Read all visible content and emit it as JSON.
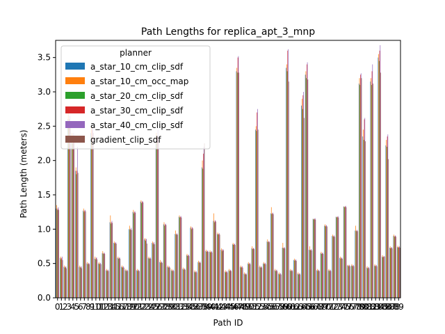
{
  "chart_data": {
    "type": "bar",
    "title": "Path Lengths for replica_apt_3_mnp",
    "xlabel": "Path ID",
    "ylabel": "Path Length (meters)",
    "ylim": [
      0,
      3.75
    ],
    "yticks": [
      "0.0",
      "0.5",
      "1.0",
      "1.5",
      "2.0",
      "2.5",
      "3.0",
      "3.5"
    ],
    "legend_title": "planner",
    "legend_position": "upper-left",
    "grid": false,
    "categories": [
      "0",
      "1",
      "2",
      "3",
      "4",
      "5",
      "6",
      "7",
      "8",
      "9",
      "10",
      "11",
      "12",
      "13",
      "14",
      "15",
      "16",
      "17",
      "18",
      "19",
      "20",
      "21",
      "22",
      "23",
      "24",
      "25",
      "26",
      "27",
      "28",
      "29",
      "30",
      "31",
      "32",
      "33",
      "34",
      "35",
      "36",
      "37",
      "38",
      "39",
      "40",
      "41",
      "42",
      "43",
      "44",
      "45",
      "46",
      "47",
      "48",
      "49",
      "50",
      "51",
      "52",
      "53",
      "54",
      "55",
      "56",
      "57",
      "58",
      "59",
      "60",
      "61",
      "62",
      "63",
      "64",
      "65",
      "66",
      "67",
      "68",
      "69",
      "70",
      "71",
      "72",
      "73",
      "74",
      "75",
      "76",
      "77",
      "78",
      "79",
      "80",
      "81",
      "82",
      "83",
      "84",
      "85",
      "86",
      "87",
      "88",
      "89"
    ],
    "series": [
      {
        "name": "a_star_10_cm_clip_sdf",
        "color": "#1f77b4",
        "values": [
          1.3,
          0.58,
          0.45,
          2.6,
          2.3,
          1.85,
          0.45,
          1.27,
          0.5,
          2.4,
          0.57,
          0.5,
          0.65,
          0.4,
          1.1,
          0.8,
          0.58,
          0.45,
          0.4,
          1.0,
          1.25,
          0.4,
          1.4,
          0.85,
          0.58,
          0.8,
          2.3,
          0.52,
          1.07,
          0.45,
          0.4,
          0.93,
          1.18,
          0.42,
          0.62,
          1.02,
          0.38,
          0.52,
          1.9,
          0.68,
          0.67,
          1.12,
          0.93,
          0.7,
          0.38,
          0.4,
          0.78,
          3.3,
          0.45,
          0.35,
          0.5,
          0.72,
          2.45,
          0.45,
          0.5,
          0.82,
          1.23,
          0.4,
          0.35,
          0.73,
          3.35,
          0.4,
          0.55,
          0.35,
          2.8,
          3.25,
          0.7,
          1.15,
          0.4,
          0.65,
          1.05,
          0.4,
          0.9,
          1.18,
          0.58,
          1.33,
          0.47,
          0.47,
          0.98,
          3.12,
          2.35,
          0.44,
          3.15,
          0.47,
          3.5,
          0.6,
          2.22,
          0.73,
          0.9,
          0.74
        ]
      },
      {
        "name": "a_star_10_cm_occ_map",
        "color": "#ff7f0e",
        "values": [
          1.35,
          0.6,
          0.47,
          2.7,
          2.4,
          1.9,
          0.47,
          1.3,
          0.52,
          2.5,
          0.6,
          0.52,
          0.68,
          0.42,
          1.2,
          0.82,
          0.6,
          0.47,
          0.42,
          1.05,
          1.28,
          0.42,
          1.42,
          0.87,
          0.6,
          0.82,
          2.4,
          0.55,
          1.1,
          0.47,
          0.42,
          0.98,
          1.2,
          0.44,
          0.64,
          1.04,
          0.4,
          0.54,
          2.0,
          0.7,
          0.69,
          1.23,
          0.95,
          0.72,
          0.4,
          0.42,
          0.8,
          3.35,
          0.47,
          0.37,
          0.52,
          0.75,
          2.5,
          0.47,
          0.52,
          0.85,
          1.32,
          0.42,
          0.37,
          0.8,
          3.4,
          0.42,
          0.57,
          0.37,
          2.9,
          3.3,
          0.75,
          1.15,
          0.42,
          0.67,
          1.07,
          0.42,
          0.92,
          1.18,
          0.6,
          1.33,
          0.48,
          0.49,
          1.05,
          3.2,
          2.45,
          0.46,
          3.2,
          0.49,
          3.55,
          0.62,
          2.3,
          0.75,
          0.92,
          0.76
        ]
      },
      {
        "name": "a_star_20_cm_clip_sdf",
        "color": "#2ca02c",
        "values": [
          1.28,
          0.56,
          0.44,
          2.55,
          2.25,
          1.8,
          0.44,
          1.25,
          0.49,
          2.35,
          0.56,
          0.49,
          0.64,
          0.39,
          1.08,
          0.79,
          0.57,
          0.44,
          0.39,
          0.99,
          1.23,
          0.39,
          1.38,
          0.83,
          0.57,
          0.78,
          2.25,
          0.51,
          1.05,
          0.44,
          0.39,
          0.92,
          1.17,
          0.41,
          0.61,
          1.0,
          0.37,
          0.51,
          1.88,
          0.67,
          0.66,
          1.1,
          0.92,
          0.68,
          0.37,
          0.39,
          0.77,
          3.28,
          0.44,
          0.34,
          0.49,
          0.71,
          2.43,
          0.44,
          0.49,
          0.81,
          1.22,
          0.39,
          0.34,
          0.72,
          3.3,
          0.39,
          0.54,
          0.34,
          2.75,
          3.2,
          0.69,
          1.14,
          0.39,
          0.64,
          1.04,
          0.39,
          0.89,
          1.17,
          0.57,
          1.32,
          0.46,
          0.46,
          0.97,
          3.1,
          2.3,
          0.43,
          3.1,
          0.46,
          3.45,
          0.59,
          2.2,
          0.72,
          0.89,
          0.73
        ]
      },
      {
        "name": "a_star_30_cm_clip_sdf",
        "color": "#d62728",
        "values": [
          1.3,
          0.58,
          0.45,
          2.6,
          2.35,
          1.85,
          0.45,
          1.27,
          0.5,
          2.45,
          0.58,
          0.5,
          0.65,
          0.4,
          1.1,
          0.8,
          0.58,
          0.45,
          0.4,
          1.0,
          1.25,
          0.4,
          1.4,
          0.85,
          0.58,
          0.8,
          2.35,
          0.52,
          1.07,
          0.45,
          0.4,
          0.93,
          1.18,
          0.42,
          0.62,
          1.02,
          0.38,
          0.52,
          2.1,
          0.68,
          0.67,
          1.12,
          0.93,
          0.7,
          0.38,
          0.4,
          0.78,
          3.5,
          0.45,
          0.35,
          0.5,
          0.72,
          2.7,
          0.45,
          0.5,
          0.82,
          1.23,
          0.4,
          0.35,
          0.73,
          3.6,
          0.4,
          0.55,
          0.35,
          2.95,
          3.4,
          0.7,
          1.15,
          0.4,
          0.65,
          1.05,
          0.4,
          0.9,
          1.18,
          0.58,
          1.33,
          0.47,
          0.47,
          0.98,
          3.25,
          2.6,
          0.44,
          3.3,
          0.47,
          3.6,
          0.6,
          2.35,
          0.73,
          0.9,
          0.74
        ]
      },
      {
        "name": "a_star_40_cm_clip_sdf",
        "color": "#9467bd",
        "values": [
          1.32,
          0.6,
          0.46,
          2.65,
          2.4,
          2.2,
          0.46,
          1.28,
          0.51,
          2.5,
          0.59,
          0.51,
          0.66,
          0.41,
          1.12,
          0.81,
          0.59,
          0.46,
          0.41,
          1.02,
          1.26,
          0.41,
          1.41,
          0.86,
          0.59,
          0.81,
          2.45,
          0.53,
          1.08,
          0.46,
          0.41,
          0.94,
          1.19,
          0.43,
          0.63,
          1.03,
          0.39,
          0.53,
          2.2,
          0.69,
          0.68,
          1.13,
          0.94,
          0.71,
          0.39,
          0.41,
          0.79,
          3.52,
          0.46,
          0.36,
          0.51,
          0.73,
          2.75,
          0.46,
          0.51,
          0.83,
          1.24,
          0.41,
          0.36,
          0.74,
          3.62,
          0.41,
          0.56,
          0.36,
          3.0,
          3.43,
          0.71,
          1.16,
          0.41,
          0.66,
          1.06,
          0.41,
          0.91,
          1.19,
          0.59,
          1.34,
          0.48,
          0.48,
          0.99,
          3.27,
          2.62,
          0.45,
          3.4,
          0.48,
          3.68,
          0.61,
          2.38,
          0.74,
          0.91,
          0.75
        ]
      },
      {
        "name": "gradient_clip_sdf",
        "color": "#8c564b",
        "values": [
          1.28,
          0.55,
          0.43,
          2.55,
          2.3,
          1.82,
          0.43,
          1.26,
          0.49,
          2.4,
          0.56,
          0.49,
          0.64,
          0.39,
          1.09,
          0.79,
          0.57,
          0.44,
          0.39,
          0.99,
          1.24,
          0.39,
          1.39,
          0.79,
          0.57,
          0.78,
          2.3,
          0.51,
          1.06,
          0.44,
          0.39,
          0.92,
          1.17,
          0.41,
          0.61,
          1.01,
          0.37,
          0.51,
          2.25,
          0.67,
          0.66,
          1.11,
          0.92,
          0.69,
          0.37,
          0.39,
          0.77,
          3.28,
          0.44,
          0.34,
          0.49,
          0.71,
          2.45,
          0.44,
          0.49,
          0.81,
          1.22,
          0.39,
          0.34,
          0.72,
          3.15,
          0.39,
          0.54,
          0.34,
          2.62,
          3.18,
          0.69,
          1.14,
          0.39,
          0.64,
          1.04,
          0.39,
          0.89,
          1.17,
          0.57,
          1.32,
          0.46,
          0.46,
          0.97,
          3.2,
          2.28,
          0.43,
          3.12,
          0.46,
          3.28,
          0.6,
          2.02,
          0.72,
          0.89,
          0.73
        ]
      }
    ]
  }
}
